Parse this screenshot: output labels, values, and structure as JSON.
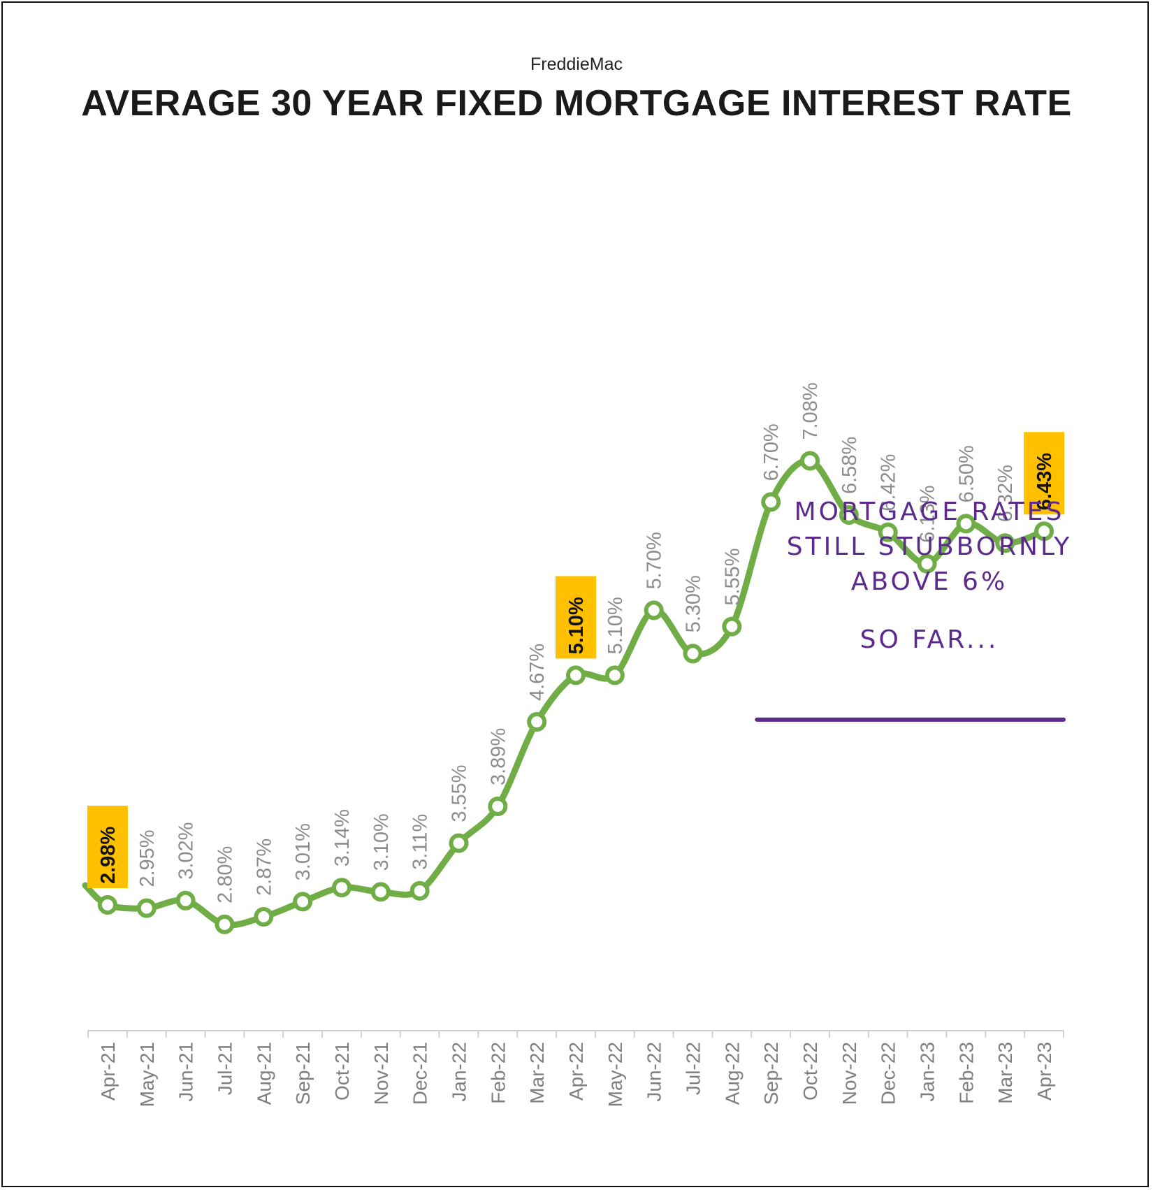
{
  "source": "FreddieMac",
  "title": "AVERAGE 30 YEAR FIXED MORTGAGE INTEREST RATE",
  "annotation": {
    "lines": [
      "MORTGAGE  RATES",
      "STILL STUBBORNLY",
      "ABOVE 6%",
      "SO FAR..."
    ]
  },
  "colors": {
    "line": "#70ad47",
    "highlight": "#ffc000",
    "annotation": "#5b2a8c",
    "label": "#8c8c8c"
  },
  "chart_data": {
    "type": "line",
    "categories": [
      "Apr-21",
      "May-21",
      "Jun-21",
      "Jul-21",
      "Aug-21",
      "Sep-21",
      "Oct-21",
      "Nov-21",
      "Dec-21",
      "Jan-22",
      "Feb-22",
      "Mar-22",
      "Apr-22",
      "May-22",
      "Jun-22",
      "Jul-22",
      "Aug-22",
      "Sep-22",
      "Oct-22",
      "Nov-22",
      "Dec-22",
      "Jan-23",
      "Feb-23",
      "Mar-23",
      "Apr-23"
    ],
    "values": [
      2.98,
      2.95,
      3.02,
      2.8,
      2.87,
      3.01,
      3.14,
      3.1,
      3.11,
      3.55,
      3.89,
      4.67,
      5.1,
      5.1,
      5.7,
      5.3,
      5.55,
      6.7,
      7.08,
      6.58,
      6.42,
      6.13,
      6.5,
      6.32,
      6.43
    ],
    "labels": [
      "2.98%",
      "2.95%",
      "3.02%",
      "2.80%",
      "2.87%",
      "3.01%",
      "3.14%",
      "3.10%",
      "3.11%",
      "3.55%",
      "3.89%",
      "4.67%",
      "5.10%",
      "5.10%",
      "5.70%",
      "5.30%",
      "5.55%",
      "6.70%",
      "7.08%",
      "6.58%",
      "6.42%",
      "6.13%",
      "6.50%",
      "6.32%",
      "6.43%"
    ],
    "highlighted": [
      "Apr-21",
      "Apr-22",
      "Apr-23"
    ],
    "reference_line": 6.0,
    "ylim": [
      1.5,
      8.0
    ],
    "grid": false,
    "legend": "none",
    "xlabel": "",
    "ylabel": ""
  }
}
